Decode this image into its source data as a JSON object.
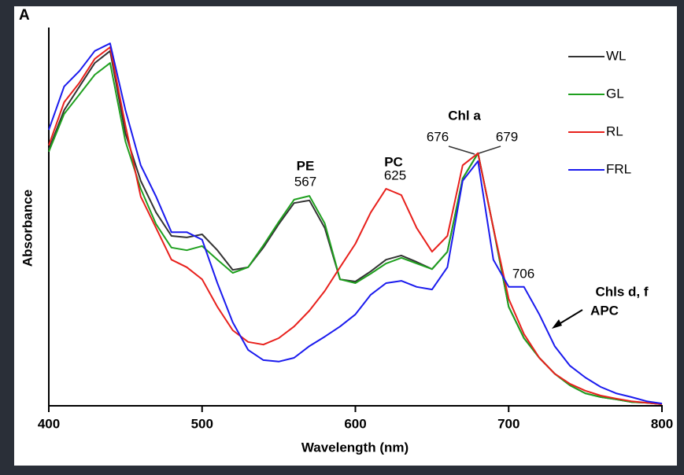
{
  "chart_data": {
    "type": "line",
    "panel_label": "A",
    "xlabel": "Wavelength (nm)",
    "ylabel": "Absorbance",
    "x": [
      400,
      410,
      420,
      430,
      440,
      450,
      460,
      470,
      480,
      490,
      500,
      510,
      520,
      530,
      540,
      550,
      560,
      570,
      580,
      590,
      600,
      610,
      620,
      630,
      640,
      650,
      660,
      670,
      680,
      690,
      700,
      710,
      720,
      730,
      740,
      750,
      760,
      770,
      780,
      790,
      800
    ],
    "xlim": [
      400,
      800
    ],
    "xticks": [
      400,
      500,
      600,
      700,
      800
    ],
    "ylim": [
      0,
      1
    ],
    "legend": "upper right",
    "series": [
      {
        "name": "WL",
        "color": "#333333",
        "values": [
          0.677,
          0.781,
          0.844,
          0.906,
          0.938,
          0.719,
          0.594,
          0.51,
          0.448,
          0.444,
          0.452,
          0.41,
          0.358,
          0.365,
          0.417,
          0.479,
          0.535,
          0.542,
          0.469,
          0.333,
          0.327,
          0.354,
          0.385,
          0.396,
          0.379,
          0.36,
          0.406,
          0.6,
          0.667,
          0.469,
          0.26,
          0.177,
          0.125,
          0.083,
          0.052,
          0.031,
          0.021,
          0.015,
          0.008,
          0.006,
          0.002
        ]
      },
      {
        "name": "GL",
        "color": "#1fa01f",
        "values": [
          0.671,
          0.771,
          0.823,
          0.875,
          0.906,
          0.698,
          0.573,
          0.479,
          0.417,
          0.41,
          0.421,
          0.385,
          0.35,
          0.365,
          0.423,
          0.485,
          0.544,
          0.554,
          0.481,
          0.333,
          0.323,
          0.348,
          0.375,
          0.39,
          0.375,
          0.36,
          0.406,
          0.6,
          0.667,
          0.469,
          0.26,
          0.177,
          0.125,
          0.083,
          0.052,
          0.031,
          0.021,
          0.015,
          0.008,
          0.006,
          0.002
        ]
      },
      {
        "name": "RL",
        "color": "#e8201c",
        "values": [
          0.688,
          0.802,
          0.854,
          0.917,
          0.948,
          0.74,
          0.552,
          0.469,
          0.385,
          0.365,
          0.333,
          0.26,
          0.198,
          0.167,
          0.16,
          0.177,
          0.208,
          0.25,
          0.302,
          0.365,
          0.427,
          0.51,
          0.573,
          0.556,
          0.469,
          0.406,
          0.448,
          0.635,
          0.667,
          0.469,
          0.281,
          0.188,
          0.125,
          0.083,
          0.056,
          0.038,
          0.025,
          0.017,
          0.01,
          0.006,
          0.002
        ]
      },
      {
        "name": "FRL",
        "color": "#1a1aee",
        "values": [
          0.729,
          0.844,
          0.885,
          0.938,
          0.958,
          0.781,
          0.635,
          0.552,
          0.458,
          0.458,
          0.438,
          0.323,
          0.219,
          0.146,
          0.119,
          0.115,
          0.125,
          0.156,
          0.181,
          0.208,
          0.24,
          0.292,
          0.323,
          0.329,
          0.313,
          0.306,
          0.365,
          0.594,
          0.646,
          0.385,
          0.313,
          0.313,
          0.24,
          0.156,
          0.104,
          0.073,
          0.048,
          0.031,
          0.021,
          0.01,
          0.004
        ]
      }
    ],
    "annotations": [
      "PE",
      "567",
      "PC",
      "625",
      "Chl a",
      "676",
      "679",
      "706",
      "Chls d, f",
      "APC"
    ]
  }
}
